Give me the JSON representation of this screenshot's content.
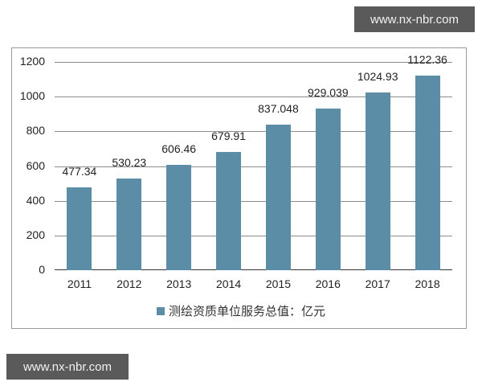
{
  "watermarks": {
    "top_right": "www.nx-nbr.com",
    "bottom_left": "www.nx-nbr.com"
  },
  "colors": {
    "bar": "#5b8ea6",
    "grid": "#8c8c8c",
    "watermark_bg": "#5a5a5a"
  },
  "legend": {
    "label": "测绘资质单位服务总值：亿元"
  },
  "chart_data": {
    "type": "bar",
    "title": "",
    "xlabel": "",
    "ylabel": "",
    "categories": [
      "2011",
      "2012",
      "2013",
      "2014",
      "2015",
      "2016",
      "2017",
      "2018"
    ],
    "series": [
      {
        "name": "测绘资质单位服务总值：亿元",
        "values": [
          477.34,
          530.23,
          606.46,
          679.91,
          837.048,
          929.039,
          1024.93,
          1122.36
        ],
        "labels": [
          "477.34",
          "530.23",
          "606.46",
          "679.91",
          "837.048",
          "929.039",
          "1024.93",
          "1122.36"
        ]
      }
    ],
    "ylim": [
      0,
      1200
    ],
    "yticks": [
      "0",
      "200",
      "400",
      "600",
      "800",
      "1000",
      "1200"
    ],
    "grid": true,
    "legend_position": "bottom"
  }
}
